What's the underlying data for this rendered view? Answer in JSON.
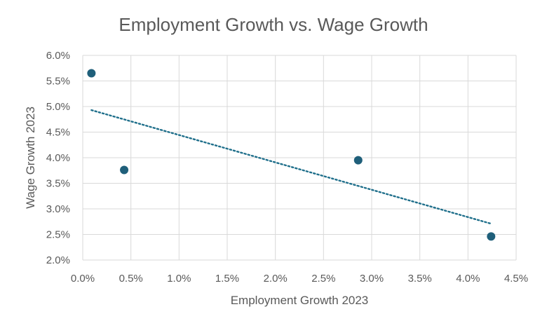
{
  "chart_data": {
    "type": "scatter",
    "title": "Employment Growth vs. Wage Growth",
    "xlabel": "Employment Growth 2023",
    "ylabel": "Wage Growth 2023",
    "xlim": [
      0.0,
      4.5
    ],
    "ylim": [
      2.0,
      6.0
    ],
    "x_ticks": [
      0.0,
      0.5,
      1.0,
      1.5,
      2.0,
      2.5,
      3.0,
      3.5,
      4.0,
      4.5
    ],
    "y_ticks": [
      2.0,
      2.5,
      3.0,
      3.5,
      4.0,
      4.5,
      5.0,
      5.5,
      6.0
    ],
    "x_tick_labels": [
      "0.0%",
      "0.5%",
      "1.0%",
      "1.5%",
      "2.0%",
      "2.5%",
      "3.0%",
      "3.5%",
      "4.0%",
      "4.5%"
    ],
    "y_tick_labels": [
      "2.0%",
      "2.5%",
      "3.0%",
      "3.5%",
      "4.0%",
      "4.5%",
      "5.0%",
      "5.5%",
      "6.0%"
    ],
    "grid": true,
    "legend": "none",
    "marker_color": "#1f5f7a",
    "trendline_color": "#1f6f8b",
    "series": [
      {
        "points": [
          {
            "x": 0.09,
            "y": 5.65
          },
          {
            "x": 0.43,
            "y": 3.76
          },
          {
            "x": 2.86,
            "y": 3.95
          },
          {
            "x": 4.24,
            "y": 2.46
          }
        ],
        "trendline": {
          "type": "linear",
          "start": {
            "x": 0.09,
            "y": 4.93
          },
          "end": {
            "x": 4.24,
            "y": 2.71
          }
        }
      }
    ]
  }
}
